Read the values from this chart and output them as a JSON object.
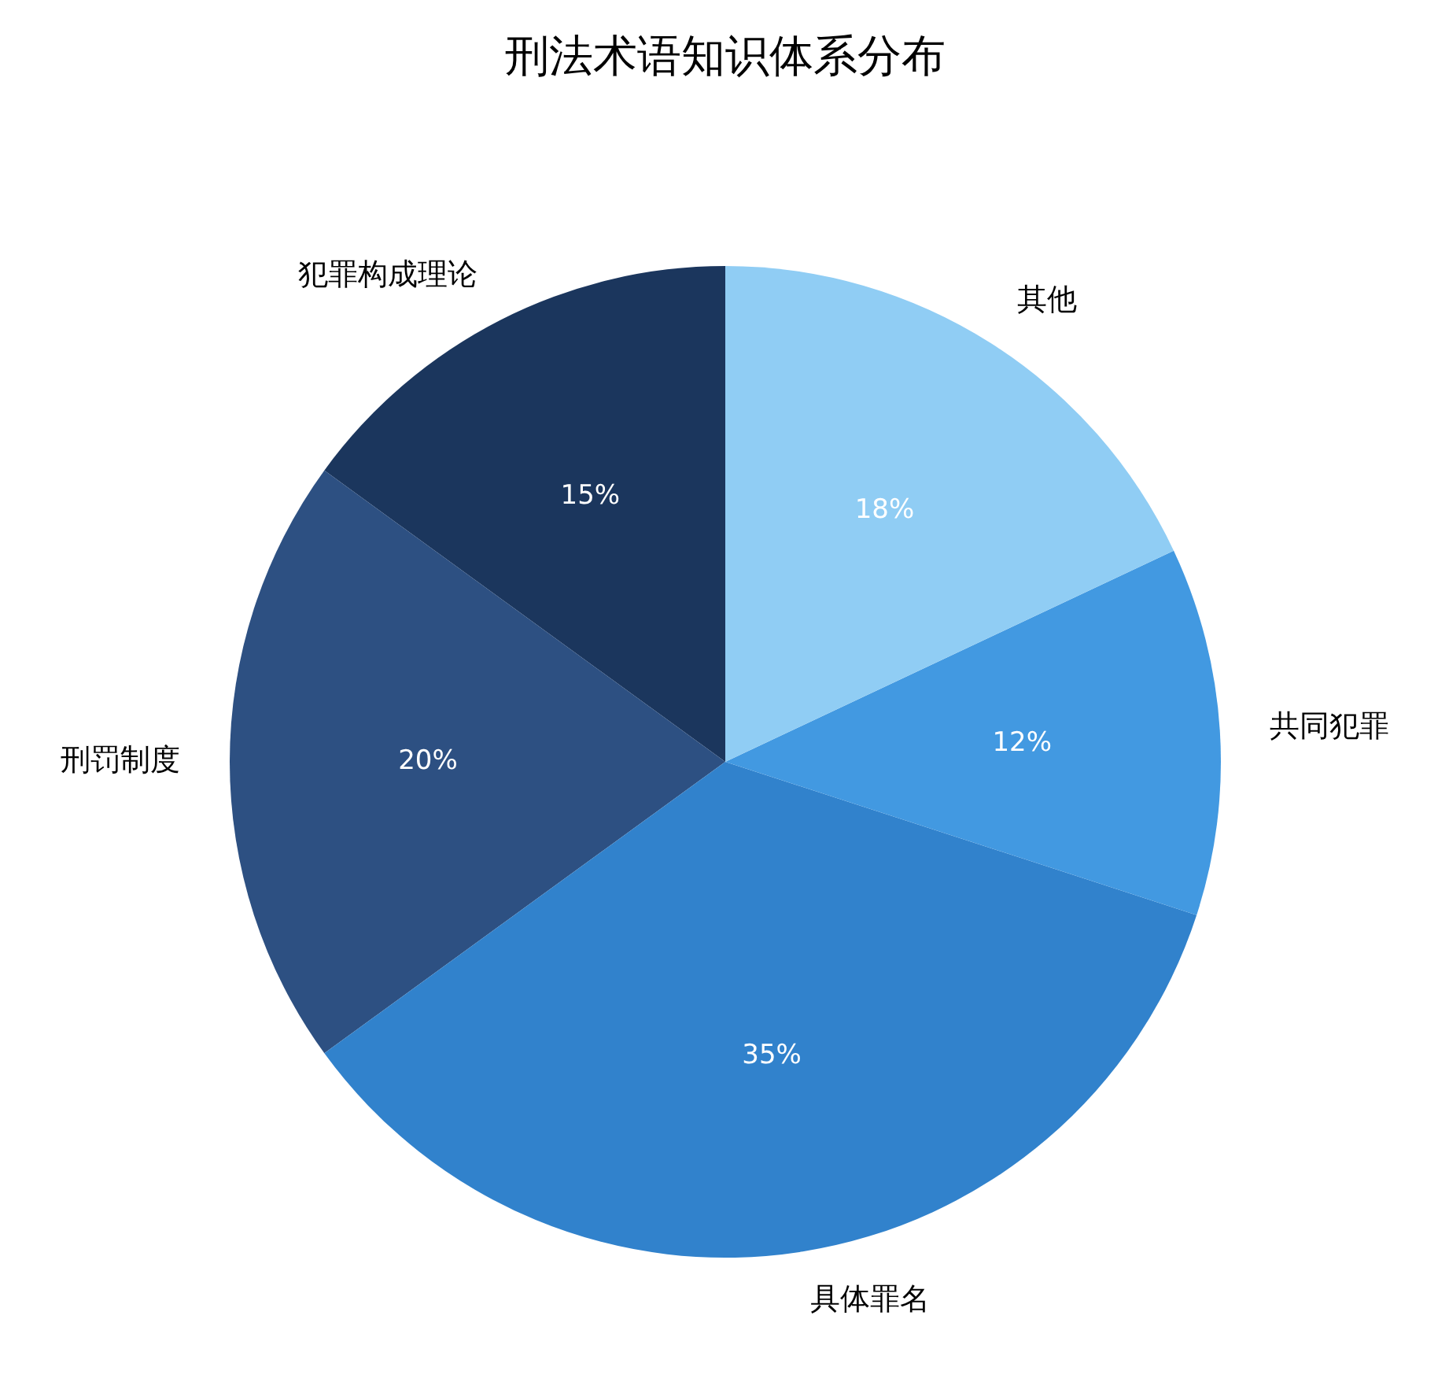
{
  "chart_data": {
    "type": "pie",
    "title": "刑法术语知识体系分布",
    "categories": [
      "犯罪构成理论",
      "刑罚制度",
      "具体罪名",
      "共同犯罪",
      "其他"
    ],
    "values": [
      15,
      20,
      35,
      12,
      18
    ],
    "value_labels": [
      "15%",
      "20%",
      "35%",
      "12%",
      "18%"
    ],
    "colors": [
      "#1b365d",
      "#2d5082",
      "#3182cc",
      "#4299e1",
      "#90cdf4"
    ]
  }
}
